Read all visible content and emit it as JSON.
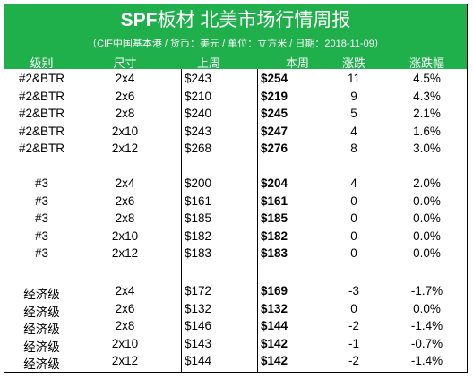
{
  "header": {
    "title_bold": "SPF",
    "title_rest": "板材 北美市场行情周报",
    "subtitle": "（CIF中国基本港 / 货币：美元 / 单位：立方米 / 日期：2018-11-09）"
  },
  "columns": {
    "grade": "级别",
    "size": "尺寸",
    "last_week": "上周",
    "this_week": "本周",
    "change": "涨跌",
    "change_pct": "涨跌幅"
  },
  "groups": [
    {
      "rows": [
        {
          "grade": "#2&BTR",
          "size": "2x4",
          "last": "$243",
          "this": "$254",
          "chg": "11",
          "pct": "4.5%"
        },
        {
          "grade": "#2&BTR",
          "size": "2x6",
          "last": "$210",
          "this": "$219",
          "chg": "9",
          "pct": "4.3%"
        },
        {
          "grade": "#2&BTR",
          "size": "2x8",
          "last": "$240",
          "this": "$245",
          "chg": "5",
          "pct": "2.1%"
        },
        {
          "grade": "#2&BTR",
          "size": "2x10",
          "last": "$243",
          "this": "$247",
          "chg": "4",
          "pct": "1.6%"
        },
        {
          "grade": "#2&BTR",
          "size": "2x12",
          "last": "$268",
          "this": "$276",
          "chg": "8",
          "pct": "3.0%"
        }
      ]
    },
    {
      "rows": [
        {
          "grade": "#3",
          "size": "2x4",
          "last": "$200",
          "this": "$204",
          "chg": "4",
          "pct": "2.0%"
        },
        {
          "grade": "#3",
          "size": "2x6",
          "last": "$161",
          "this": "$161",
          "chg": "0",
          "pct": "0.0%"
        },
        {
          "grade": "#3",
          "size": "2x8",
          "last": "$185",
          "this": "$185",
          "chg": "0",
          "pct": "0.0%"
        },
        {
          "grade": "#3",
          "size": "2x10",
          "last": "$182",
          "this": "$182",
          "chg": "0",
          "pct": "0.0%"
        },
        {
          "grade": "#3",
          "size": "2x12",
          "last": "$183",
          "this": "$183",
          "chg": "0",
          "pct": "0.0%"
        }
      ]
    },
    {
      "rows": [
        {
          "grade": "经济级",
          "size": "2x4",
          "last": "$172",
          "this": "$169",
          "chg": "-3",
          "pct": "-1.7%"
        },
        {
          "grade": "经济级",
          "size": "2x6",
          "last": "$132",
          "this": "$132",
          "chg": "0",
          "pct": "0.0%"
        },
        {
          "grade": "经济级",
          "size": "2x8",
          "last": "$146",
          "this": "$144",
          "chg": "-2",
          "pct": "-1.4%"
        },
        {
          "grade": "经济级",
          "size": "2x10",
          "last": "$143",
          "this": "$142",
          "chg": "-1",
          "pct": "-0.7%"
        },
        {
          "grade": "经济级",
          "size": "2x12",
          "last": "$144",
          "this": "$142",
          "chg": "-2",
          "pct": "-1.4%"
        }
      ]
    }
  ]
}
